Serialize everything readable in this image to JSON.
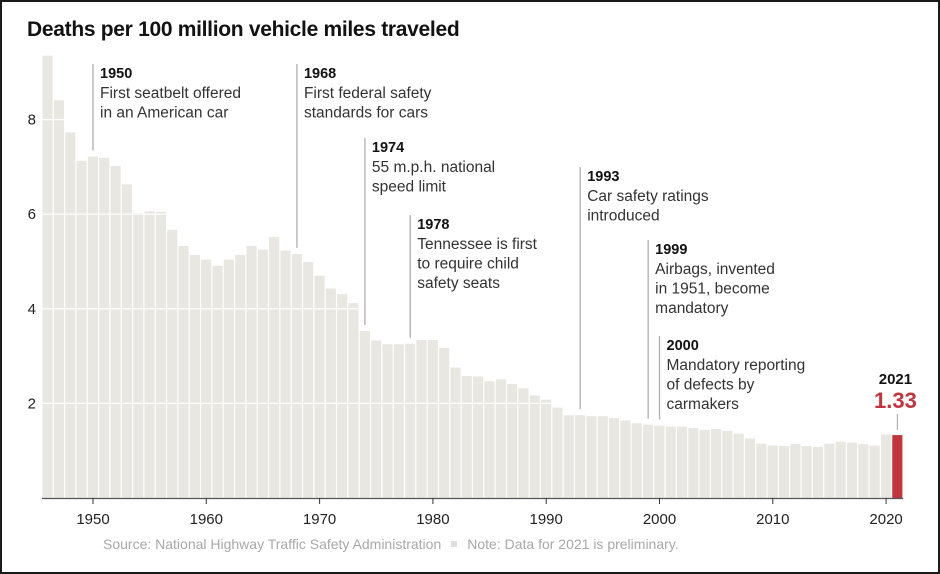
{
  "chart_data": {
    "type": "bar",
    "title": "Deaths per 100 million vehicle miles traveled",
    "xlabel": "",
    "ylabel": "",
    "ylim": [
      0,
      9.5
    ],
    "xlim": [
      1946,
      2021
    ],
    "grid": true,
    "yticks": [
      2,
      4,
      6,
      8
    ],
    "xticks": [
      1950,
      1960,
      1970,
      1980,
      1990,
      2000,
      2010,
      2020
    ],
    "categories": [
      1946,
      1947,
      1948,
      1949,
      1950,
      1951,
      1952,
      1953,
      1954,
      1955,
      1956,
      1957,
      1958,
      1959,
      1960,
      1961,
      1962,
      1963,
      1964,
      1965,
      1966,
      1967,
      1968,
      1969,
      1970,
      1971,
      1972,
      1973,
      1974,
      1975,
      1976,
      1977,
      1978,
      1979,
      1980,
      1981,
      1982,
      1983,
      1984,
      1985,
      1986,
      1987,
      1988,
      1989,
      1990,
      1991,
      1992,
      1993,
      1994,
      1995,
      1996,
      1997,
      1998,
      1999,
      2000,
      2001,
      2002,
      2003,
      2004,
      2005,
      2006,
      2007,
      2008,
      2009,
      2010,
      2011,
      2012,
      2013,
      2014,
      2015,
      2016,
      2017,
      2018,
      2019,
      2020,
      2021
    ],
    "values": [
      9.35,
      8.41,
      7.73,
      7.13,
      7.22,
      7.19,
      7.02,
      6.63,
      6.02,
      6.06,
      6.05,
      5.67,
      5.33,
      5.14,
      5.04,
      4.91,
      5.04,
      5.14,
      5.33,
      5.25,
      5.52,
      5.23,
      5.16,
      4.99,
      4.7,
      4.43,
      4.31,
      4.12,
      3.53,
      3.33,
      3.25,
      3.25,
      3.26,
      3.34,
      3.34,
      3.17,
      2.76,
      2.58,
      2.57,
      2.47,
      2.51,
      2.41,
      2.32,
      2.17,
      2.08,
      1.91,
      1.75,
      1.75,
      1.73,
      1.73,
      1.69,
      1.64,
      1.58,
      1.55,
      1.53,
      1.51,
      1.51,
      1.48,
      1.44,
      1.46,
      1.42,
      1.36,
      1.26,
      1.15,
      1.11,
      1.1,
      1.14,
      1.1,
      1.08,
      1.15,
      1.19,
      1.17,
      1.14,
      1.11,
      1.34,
      1.33
    ],
    "bar_color": "#e8e7e1",
    "highlight": {
      "year": 2021,
      "year_label": "2021",
      "value_label": "1.33",
      "color": "#c1353d"
    },
    "annotations": [
      {
        "year": 1950,
        "year_label": "1950",
        "lines": [
          "First seatbelt offered",
          "in an American car"
        ]
      },
      {
        "year": 1968,
        "year_label": "1968",
        "lines": [
          "First federal safety",
          "standards for cars"
        ]
      },
      {
        "year": 1974,
        "year_label": "1974",
        "lines": [
          "55 m.p.h. national",
          "speed limit"
        ]
      },
      {
        "year": 1978,
        "year_label": "1978",
        "lines": [
          "Tennessee is first",
          "to require child",
          "safety seats"
        ]
      },
      {
        "year": 1993,
        "year_label": "1993",
        "lines": [
          "Car safety ratings",
          "introduced"
        ]
      },
      {
        "year": 1999,
        "year_label": "1999",
        "lines": [
          "Airbags, invented",
          "in 1951, become",
          "mandatory"
        ]
      },
      {
        "year": 2000,
        "year_label": "2000",
        "lines": [
          "Mandatory reporting",
          "of defects by",
          "carmakers"
        ]
      }
    ]
  },
  "footer": {
    "source": "Source: National Highway Traffic Safety Administration",
    "note": "Note: Data for 2021 is preliminary."
  }
}
